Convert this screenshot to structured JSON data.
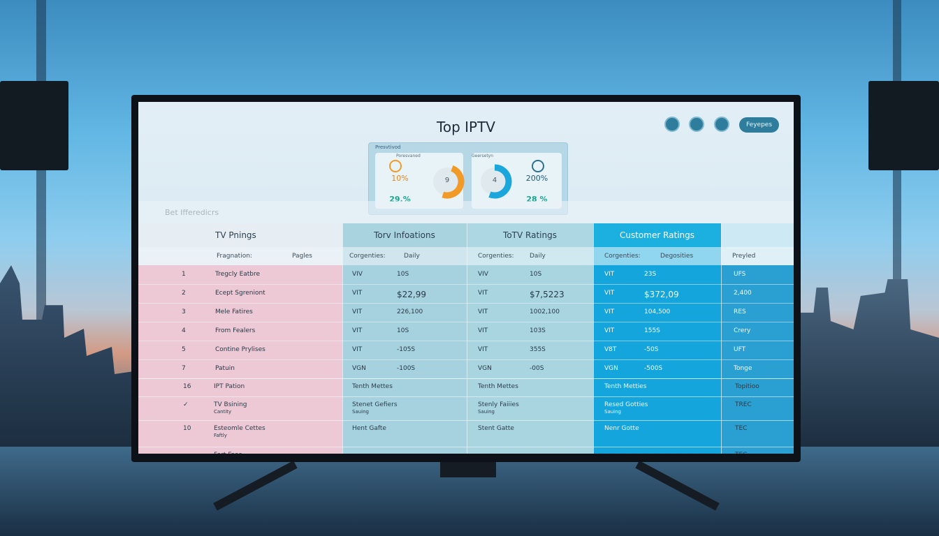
{
  "header": {
    "title": "Top IPTV",
    "button": "Feyepes",
    "dropdown": "Bet Ifferedicrs"
  },
  "cards": {
    "panel_label": "Presvtivod",
    "items": [
      {
        "label": "Poresvaned",
        "center": "9",
        "primary": "10%",
        "secondary": "29.%"
      },
      {
        "label": "Geersetyn",
        "center": "4",
        "primary": "200%",
        "secondary": "28 %"
      }
    ]
  },
  "table": {
    "headers": [
      "TV Pnings",
      "Torv Infoations",
      "ToTV Ratings",
      "Customer Ratings"
    ],
    "subheaders": [
      "Fragnation:",
      "Pagles",
      "Corgenties:",
      "Daily",
      "Corgenties:",
      "Daily",
      "Corgenties:",
      "Degosities",
      "Preyled"
    ],
    "rows": [
      [
        "1",
        "Tregcly Eatbre",
        "VIV",
        "10S",
        "VIV",
        "10S",
        "VIT",
        "23S",
        "UFS"
      ],
      [
        "2",
        "Ecept Sgreniont",
        "VIT",
        "$22,99",
        "VIT",
        "$7,5223",
        "VIT",
        "$372,09",
        "2,400"
      ],
      [
        "3",
        "Mele Fatires",
        "VIT",
        "226,100",
        "VIT",
        "1002,100",
        "VIT",
        "104,500",
        "RES"
      ],
      [
        "4",
        "From Fealers",
        "VIT",
        "10S",
        "VIT",
        "103S",
        "VIT",
        "155S",
        "Crery"
      ],
      [
        "5",
        "Contine Prylises",
        "VIT",
        "-105S",
        "VIT",
        "355S",
        "V8T",
        "-50S",
        "UFT"
      ],
      [
        "7",
        "Patuin",
        "VGN",
        "-100S",
        "VGN",
        "-00S",
        "VGN",
        "-500S",
        "Tonge"
      ]
    ],
    "rows2": [
      {
        "rank": "16",
        "name": "IPT Pation",
        "c2": "Tenth Mettes",
        "c3": "Tenth Mettes",
        "c4": "Tenth Metties",
        "c5": "Topitioo"
      },
      {
        "rank": "✓",
        "name": "TV Bsining",
        "sub": "Cantity",
        "c2": "Stenet Gefiers",
        "c2sub": "Sauing",
        "c3": "Stenly Faiiies",
        "c3sub": "Sauing",
        "c4": "Resed Gotties",
        "c4sub": "Sauing",
        "c5": "TREC"
      },
      {
        "rank": "10",
        "name": "Esteomle Cettes",
        "sub": "Faftly",
        "c2": "Hent Gafte",
        "c3": "Stent Gatte",
        "c4": "Nenr Gotte",
        "c5": "TEC"
      },
      {
        "name": "Fert Faas",
        "c5": "TEC"
      }
    ]
  }
}
